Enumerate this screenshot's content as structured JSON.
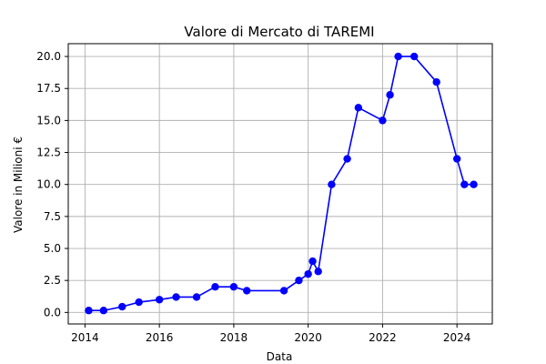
{
  "chart_data": {
    "type": "line",
    "title": "Valore di Mercato di TAREMI",
    "xlabel": "Data",
    "ylabel": "Valore in Milioni €",
    "x_ticks": [
      2014,
      2016,
      2018,
      2020,
      2022,
      2024
    ],
    "y_ticks": [
      "0.0",
      "2.5",
      "5.0",
      "7.5",
      "10.0",
      "12.5",
      "15.0",
      "17.5",
      "20.0"
    ],
    "xlim": [
      2013.55,
      2024.95
    ],
    "ylim": [
      -0.9,
      21.0
    ],
    "grid": true,
    "line_color": "#0000ff",
    "marker_color": "#0000ff",
    "series": [
      {
        "x": [
          2014.1,
          2014.5,
          2015.0,
          2015.45,
          2016.0,
          2016.45,
          2017.0,
          2017.5,
          2018.0,
          2018.35,
          2019.35,
          2019.75,
          2020.0,
          2020.12,
          2020.27,
          2020.63,
          2021.05,
          2021.35,
          2022.0,
          2022.2,
          2022.42,
          2022.85,
          2023.45,
          2024.0,
          2024.2,
          2024.45
        ],
        "y": [
          0.15,
          0.15,
          0.45,
          0.8,
          1.0,
          1.2,
          1.2,
          2.0,
          2.0,
          1.7,
          1.7,
          2.5,
          3.0,
          4.0,
          3.2,
          10.0,
          12.0,
          16.0,
          15.0,
          17.0,
          20.0,
          20.0,
          18.0,
          12.0,
          10.0,
          10.0
        ]
      }
    ]
  }
}
